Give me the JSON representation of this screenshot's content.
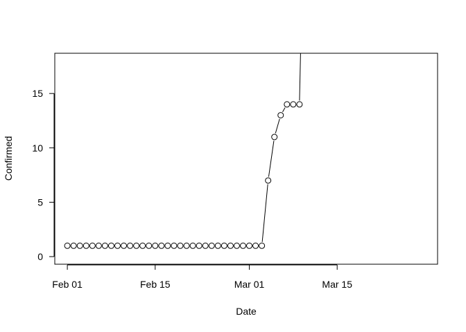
{
  "chart_data": {
    "type": "line",
    "title": "",
    "xlabel": "Date",
    "ylabel": "Confirmed",
    "x_tick_labels": [
      "Feb 01",
      "Feb 15",
      "Mar 01",
      "Mar 15"
    ],
    "x_tick_dates": [
      "2020-02-01",
      "2020-02-15",
      "2020-03-01",
      "2020-03-15"
    ],
    "y_ticks": [
      0,
      5,
      10,
      15
    ],
    "xlim": [
      "2020-01-30",
      "2020-03-31"
    ],
    "ylim": [
      -0.7,
      18.7
    ],
    "grid": false,
    "series": [
      {
        "marker": "open-circle",
        "color": "#000000",
        "points": [
          {
            "x": "2020-02-01",
            "y": 1
          },
          {
            "x": "2020-02-02",
            "y": 1
          },
          {
            "x": "2020-02-03",
            "y": 1
          },
          {
            "x": "2020-02-04",
            "y": 1
          },
          {
            "x": "2020-02-05",
            "y": 1
          },
          {
            "x": "2020-02-06",
            "y": 1
          },
          {
            "x": "2020-02-07",
            "y": 1
          },
          {
            "x": "2020-02-08",
            "y": 1
          },
          {
            "x": "2020-02-09",
            "y": 1
          },
          {
            "x": "2020-02-10",
            "y": 1
          },
          {
            "x": "2020-02-11",
            "y": 1
          },
          {
            "x": "2020-02-12",
            "y": 1
          },
          {
            "x": "2020-02-13",
            "y": 1
          },
          {
            "x": "2020-02-14",
            "y": 1
          },
          {
            "x": "2020-02-15",
            "y": 1
          },
          {
            "x": "2020-02-16",
            "y": 1
          },
          {
            "x": "2020-02-17",
            "y": 1
          },
          {
            "x": "2020-02-18",
            "y": 1
          },
          {
            "x": "2020-02-19",
            "y": 1
          },
          {
            "x": "2020-02-20",
            "y": 1
          },
          {
            "x": "2020-02-21",
            "y": 1
          },
          {
            "x": "2020-02-22",
            "y": 1
          },
          {
            "x": "2020-02-23",
            "y": 1
          },
          {
            "x": "2020-02-24",
            "y": 1
          },
          {
            "x": "2020-02-25",
            "y": 1
          },
          {
            "x": "2020-02-26",
            "y": 1
          },
          {
            "x": "2020-02-27",
            "y": 1
          },
          {
            "x": "2020-02-28",
            "y": 1
          },
          {
            "x": "2020-02-29",
            "y": 1
          },
          {
            "x": "2020-03-01",
            "y": 1
          },
          {
            "x": "2020-03-02",
            "y": 1
          },
          {
            "x": "2020-03-03",
            "y": 1
          },
          {
            "x": "2020-03-04",
            "y": 7
          },
          {
            "x": "2020-03-05",
            "y": 11
          },
          {
            "x": "2020-03-06",
            "y": 13
          },
          {
            "x": "2020-03-07",
            "y": 14
          },
          {
            "x": "2020-03-08",
            "y": 14
          },
          {
            "x": "2020-03-09",
            "y": 14
          }
        ],
        "continues_offscale_after": "2020-03-09"
      }
    ]
  }
}
